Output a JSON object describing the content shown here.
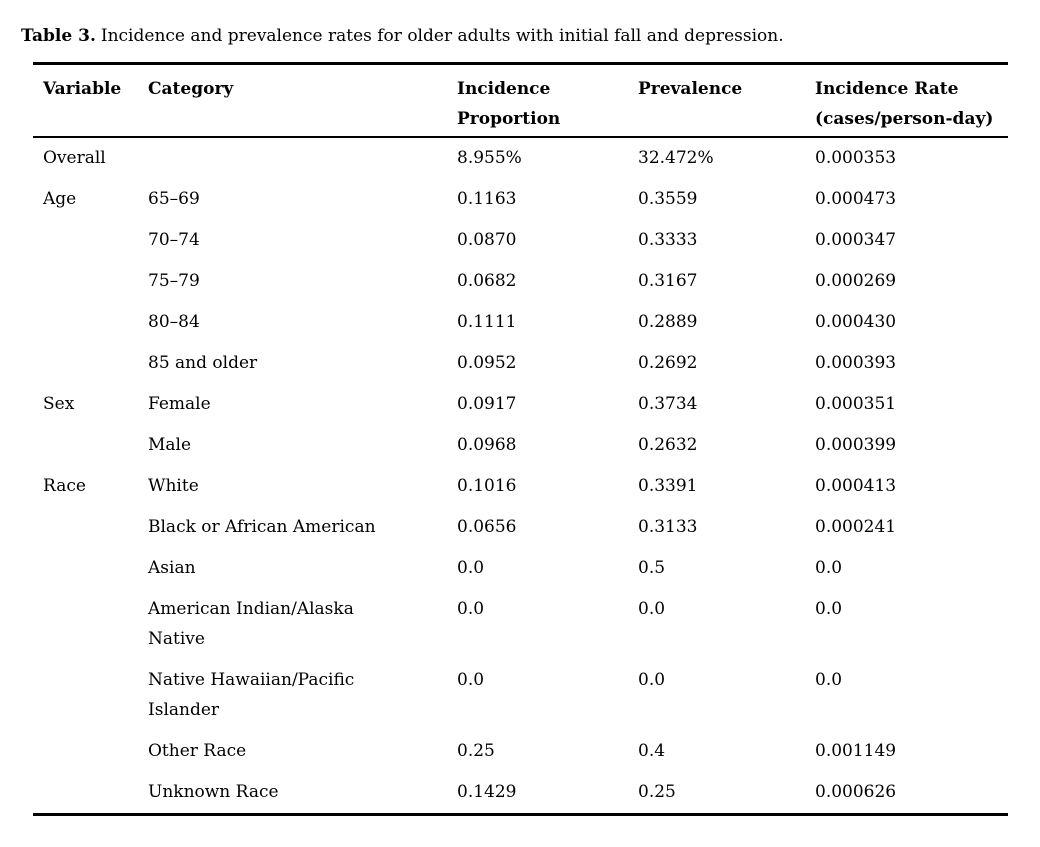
{
  "caption": {
    "label": "Table 3.",
    "text": "Incidence and prevalence rates for older adults with initial fall and depression."
  },
  "colors": {
    "background": "#ffffff",
    "text": "#000000",
    "rule": "#000000"
  },
  "table": {
    "columns": [
      "Variable",
      "Category",
      "Incidence Proportion",
      "Prevalence",
      "Incidence Rate (cases/person-day)"
    ],
    "field_order": [
      "variable",
      "category",
      "incidence_proportion",
      "prevalence",
      "incidence_rate"
    ],
    "rows": [
      {
        "variable": "Overall",
        "category": "",
        "incidence_proportion": "8.955%",
        "prevalence": "32.472%",
        "incidence_rate": "0.000353"
      },
      {
        "variable": "Age",
        "category": "65–69",
        "incidence_proportion": "0.1163",
        "prevalence": "0.3559",
        "incidence_rate": "0.000473"
      },
      {
        "variable": "",
        "category": "70–74",
        "incidence_proportion": "0.0870",
        "prevalence": "0.3333",
        "incidence_rate": "0.000347"
      },
      {
        "variable": "",
        "category": "75–79",
        "incidence_proportion": "0.0682",
        "prevalence": "0.3167",
        "incidence_rate": "0.000269"
      },
      {
        "variable": "",
        "category": "80–84",
        "incidence_proportion": "0.1111",
        "prevalence": "0.2889",
        "incidence_rate": "0.000430"
      },
      {
        "variable": "",
        "category": "85 and older",
        "incidence_proportion": "0.0952",
        "prevalence": "0.2692",
        "incidence_rate": "0.000393"
      },
      {
        "variable": "Sex",
        "category": "Female",
        "incidence_proportion": "0.0917",
        "prevalence": "0.3734",
        "incidence_rate": "0.000351"
      },
      {
        "variable": "",
        "category": "Male",
        "incidence_proportion": "0.0968",
        "prevalence": "0.2632",
        "incidence_rate": "0.000399"
      },
      {
        "variable": "Race",
        "category": "White",
        "incidence_proportion": "0.1016",
        "prevalence": "0.3391",
        "incidence_rate": "0.000413"
      },
      {
        "variable": "",
        "category": "Black or African American",
        "incidence_proportion": "0.0656",
        "prevalence": "0.3133",
        "incidence_rate": "0.000241"
      },
      {
        "variable": "",
        "category": "Asian",
        "incidence_proportion": "0.0",
        "prevalence": "0.5",
        "incidence_rate": "0.0"
      },
      {
        "variable": "",
        "category": "American Indian/Alaska Native",
        "incidence_proportion": "0.0",
        "prevalence": "0.0",
        "incidence_rate": "0.0"
      },
      {
        "variable": "",
        "category": "Native Hawaiian/Pacific Islander",
        "incidence_proportion": "0.0",
        "prevalence": "0.0",
        "incidence_rate": "0.0"
      },
      {
        "variable": "",
        "category": "Other Race",
        "incidence_proportion": "0.25",
        "prevalence": "0.4",
        "incidence_rate": "0.001149"
      },
      {
        "variable": "",
        "category": "Unknown Race",
        "incidence_proportion": "0.1429",
        "prevalence": "0.25",
        "incidence_rate": "0.000626"
      }
    ]
  }
}
